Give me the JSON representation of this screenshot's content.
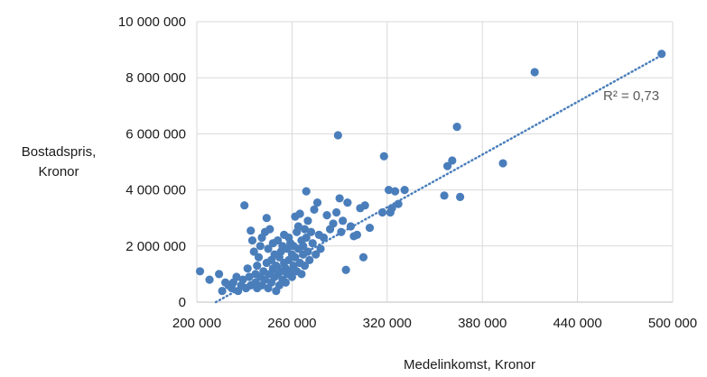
{
  "chart_data": {
    "type": "scatter",
    "xlabel": "Medelinkomst, Kronor",
    "ylabel_line1": "Bostadspris,",
    "ylabel_line2": "Kronor",
    "xlim": [
      200000,
      500000
    ],
    "ylim": [
      0,
      10000000
    ],
    "x_ticks": [
      200000,
      260000,
      320000,
      380000,
      440000,
      500000
    ],
    "x_tick_labels": [
      "200 000",
      "260 000",
      "320 000",
      "380 000",
      "440 000",
      "500 000"
    ],
    "y_ticks": [
      0,
      2000000,
      4000000,
      6000000,
      8000000,
      10000000
    ],
    "y_tick_labels": [
      "0",
      "2 000 000",
      "4 000 000",
      "6 000 000",
      "8 000 000",
      "10 000 000"
    ],
    "grid": true,
    "point_color": "#4a7ebb",
    "trendline": {
      "type": "linear",
      "style": "dotted",
      "color": "#4a7ebb",
      "from": [
        212000,
        0
      ],
      "to": [
        493000,
        8800000
      ],
      "r2_label": "R² = 0,73"
    },
    "points": [
      [
        202000,
        1100000
      ],
      [
        208000,
        800000
      ],
      [
        214000,
        1000000
      ],
      [
        216000,
        400000
      ],
      [
        218000,
        700000
      ],
      [
        220000,
        600000
      ],
      [
        222000,
        500000
      ],
      [
        223000,
        700000
      ],
      [
        225000,
        900000
      ],
      [
        226000,
        400000
      ],
      [
        228000,
        600000
      ],
      [
        229000,
        800000
      ],
      [
        230000,
        3450000
      ],
      [
        231000,
        500000
      ],
      [
        232000,
        1200000
      ],
      [
        233000,
        900000
      ],
      [
        234000,
        2550000
      ],
      [
        234000,
        600000
      ],
      [
        235000,
        2200000
      ],
      [
        236000,
        1800000
      ],
      [
        237000,
        1000000
      ],
      [
        237000,
        700000
      ],
      [
        238000,
        500000
      ],
      [
        238000,
        1300000
      ],
      [
        239000,
        1600000
      ],
      [
        240000,
        2000000
      ],
      [
        240000,
        900000
      ],
      [
        241000,
        2300000
      ],
      [
        241000,
        600000
      ],
      [
        242000,
        1100000
      ],
      [
        243000,
        2500000
      ],
      [
        243000,
        800000
      ],
      [
        244000,
        3000000
      ],
      [
        244000,
        1400000
      ],
      [
        245000,
        500000
      ],
      [
        245000,
        1900000
      ],
      [
        246000,
        1000000
      ],
      [
        246000,
        2600000
      ],
      [
        247000,
        700000
      ],
      [
        247000,
        1500000
      ],
      [
        248000,
        1200000
      ],
      [
        248000,
        2100000
      ],
      [
        249000,
        900000
      ],
      [
        249000,
        1700000
      ],
      [
        250000,
        400000
      ],
      [
        250000,
        1300000
      ],
      [
        251000,
        2200000
      ],
      [
        251000,
        1000000
      ],
      [
        252000,
        1600000
      ],
      [
        252000,
        600000
      ],
      [
        253000,
        1800000
      ],
      [
        253000,
        1100000
      ],
      [
        254000,
        2000000
      ],
      [
        254000,
        800000
      ],
      [
        255000,
        1400000
      ],
      [
        255000,
        2400000
      ],
      [
        256000,
        1200000
      ],
      [
        256000,
        700000
      ],
      [
        257000,
        1900000
      ],
      [
        257000,
        1000000
      ],
      [
        258000,
        2300000
      ],
      [
        258000,
        1500000
      ],
      [
        259000,
        1100000
      ],
      [
        259000,
        2100000
      ],
      [
        260000,
        1700000
      ],
      [
        260000,
        900000
      ],
      [
        261000,
        2000000
      ],
      [
        261000,
        1300000
      ],
      [
        262000,
        3050000
      ],
      [
        262000,
        1600000
      ],
      [
        263000,
        2500000
      ],
      [
        263000,
        1100000
      ],
      [
        264000,
        1900000
      ],
      [
        264000,
        2700000
      ],
      [
        265000,
        3150000
      ],
      [
        265000,
        1400000
      ],
      [
        266000,
        2200000
      ],
      [
        266000,
        1000000
      ],
      [
        267000,
        2000000
      ],
      [
        267000,
        1700000
      ],
      [
        268000,
        2600000
      ],
      [
        268000,
        1300000
      ],
      [
        269000,
        3950000
      ],
      [
        269000,
        2300000
      ],
      [
        270000,
        1800000
      ],
      [
        270000,
        2900000
      ],
      [
        271000,
        1500000
      ],
      [
        272000,
        2500000
      ],
      [
        273000,
        2100000
      ],
      [
        274000,
        3300000
      ],
      [
        275000,
        1700000
      ],
      [
        276000,
        3550000
      ],
      [
        277000,
        2400000
      ],
      [
        278000,
        1900000
      ],
      [
        280000,
        2300000
      ],
      [
        282000,
        3100000
      ],
      [
        284000,
        2600000
      ],
      [
        286000,
        2800000
      ],
      [
        288000,
        3200000
      ],
      [
        289000,
        5950000
      ],
      [
        290000,
        3700000
      ],
      [
        291000,
        2500000
      ],
      [
        292000,
        2900000
      ],
      [
        294000,
        1150000
      ],
      [
        295000,
        3550000
      ],
      [
        297000,
        2700000
      ],
      [
        299000,
        2350000
      ],
      [
        301000,
        2400000
      ],
      [
        303000,
        3350000
      ],
      [
        305000,
        1600000
      ],
      [
        306000,
        3450000
      ],
      [
        309000,
        2650000
      ],
      [
        317000,
        3200000
      ],
      [
        318000,
        5200000
      ],
      [
        321000,
        4000000
      ],
      [
        322000,
        3200000
      ],
      [
        323000,
        3350000
      ],
      [
        325000,
        3950000
      ],
      [
        327000,
        3500000
      ],
      [
        331000,
        4000000
      ],
      [
        356000,
        3800000
      ],
      [
        358000,
        4850000
      ],
      [
        361000,
        5050000
      ],
      [
        364000,
        6250000
      ],
      [
        366000,
        3750000
      ],
      [
        393000,
        4950000
      ],
      [
        413000,
        8200000
      ],
      [
        493000,
        8850000
      ]
    ]
  }
}
